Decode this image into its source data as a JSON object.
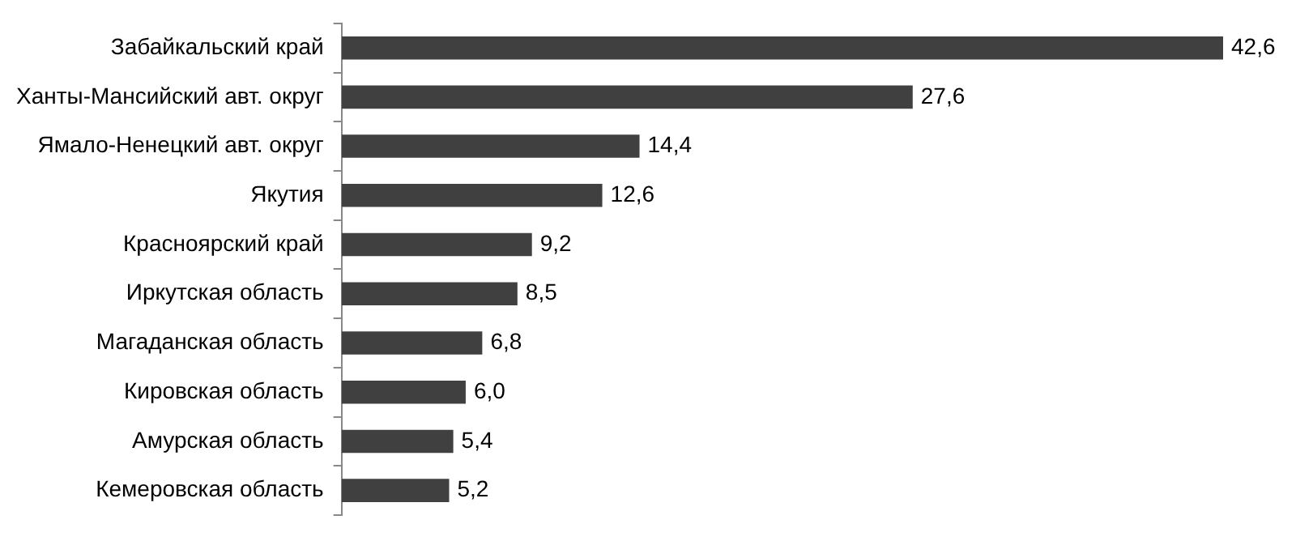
{
  "chart_data": {
    "type": "bar",
    "orientation": "horizontal",
    "categories": [
      "Забайкальский край",
      "Ханты-Мансийский авт. округ",
      "Ямало-Ненецкий авт. округ",
      "Якутия",
      "Красноярский край",
      "Иркутская область",
      "Магаданская область",
      "Кировская область",
      "Амурская область",
      "Кемеровская область"
    ],
    "values": [
      42.6,
      27.6,
      14.4,
      12.6,
      9.2,
      8.5,
      6.8,
      6.0,
      5.4,
      5.2
    ],
    "value_labels": [
      "42,6",
      "27,6",
      "14,4",
      "12,6",
      "9,2",
      "8,5",
      "6,8",
      "6,0",
      "5,4",
      "5,2"
    ],
    "color": "#404040",
    "grid": false,
    "legend": false
  }
}
